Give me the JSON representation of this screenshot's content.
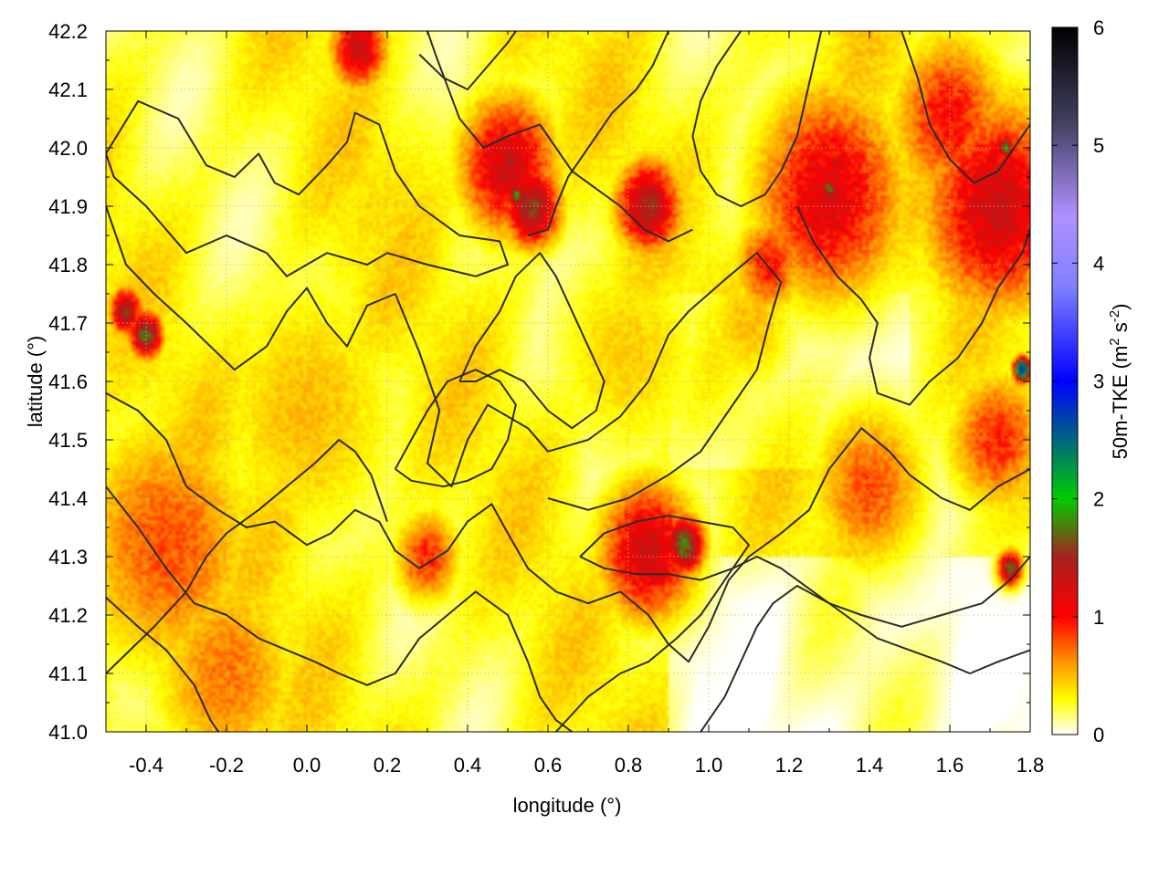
{
  "chart_data": {
    "type": "heatmap",
    "title": "",
    "xlabel": "longitude (°)",
    "ylabel": "latitude (°)",
    "xlim": [
      -0.5,
      1.8
    ],
    "ylim": [
      41.0,
      42.2
    ],
    "x_ticks": [
      "-0.4",
      "-0.2",
      "0.0",
      "0.2",
      "0.4",
      "0.6",
      "0.8",
      "1.0",
      "1.2",
      "1.4",
      "1.6",
      "1.8"
    ],
    "x_tick_values": [
      -0.4,
      -0.2,
      0.0,
      0.2,
      0.4,
      0.6,
      0.8,
      1.0,
      1.2,
      1.4,
      1.6,
      1.8
    ],
    "y_ticks": [
      "41.0",
      "41.1",
      "41.2",
      "41.3",
      "41.4",
      "41.5",
      "41.6",
      "41.7",
      "41.8",
      "41.9",
      "42.0",
      "42.1",
      "42.2"
    ],
    "y_tick_values": [
      41.0,
      41.1,
      41.2,
      41.3,
      41.4,
      41.5,
      41.6,
      41.7,
      41.8,
      41.9,
      42.0,
      42.1,
      42.2
    ],
    "grid": true,
    "colorbar": {
      "label_main": "50m-TKE (m",
      "label_sup1": "2",
      "label_mid": " s",
      "label_sup2": "-2",
      "label_end": ")",
      "range": [
        0,
        6
      ],
      "ticks": [
        "0",
        "1",
        "2",
        "3",
        "4",
        "5",
        "6"
      ],
      "tick_values": [
        0,
        1,
        2,
        3,
        4,
        5,
        6
      ],
      "colors": [
        "#ffffff",
        "#ffff00",
        "#ff9900",
        "#ff0000",
        "#a82020",
        "#00cc00",
        "#0000ff",
        "#8080ff",
        "#b090ff",
        "#404060",
        "#000000"
      ],
      "color_stops": [
        0,
        0.3,
        0.6,
        1.0,
        1.5,
        2.0,
        3.0,
        3.8,
        4.4,
        5.2,
        6.0
      ]
    },
    "hotspots": [
      {
        "lon": -0.35,
        "lat": 41.32,
        "tke": 0.8,
        "r": 0.22
      },
      {
        "lon": -0.2,
        "lat": 41.1,
        "tke": 0.7,
        "r": 0.18
      },
      {
        "lon": -0.45,
        "lat": 41.72,
        "tke": 1.6,
        "r": 0.04
      },
      {
        "lon": -0.4,
        "lat": 41.68,
        "tke": 1.8,
        "r": 0.04
      },
      {
        "lon": 0.13,
        "lat": 42.17,
        "tke": 1.3,
        "r": 0.07
      },
      {
        "lon": 0.5,
        "lat": 41.97,
        "tke": 1.3,
        "r": 0.12
      },
      {
        "lon": 0.56,
        "lat": 41.9,
        "tke": 1.6,
        "r": 0.07
      },
      {
        "lon": 0.85,
        "lat": 41.9,
        "tke": 1.5,
        "r": 0.08
      },
      {
        "lon": 1.3,
        "lat": 41.92,
        "tke": 1.2,
        "r": 0.18
      },
      {
        "lon": 1.72,
        "lat": 41.9,
        "tke": 1.3,
        "r": 0.18
      },
      {
        "lon": 1.6,
        "lat": 42.05,
        "tke": 1.0,
        "r": 0.14
      },
      {
        "lon": 0.85,
        "lat": 41.31,
        "tke": 1.3,
        "r": 0.12
      },
      {
        "lon": 0.94,
        "lat": 41.32,
        "tke": 1.8,
        "r": 0.05
      },
      {
        "lon": 1.15,
        "lat": 41.8,
        "tke": 1.0,
        "r": 0.08
      },
      {
        "lon": 0.3,
        "lat": 41.3,
        "tke": 0.9,
        "r": 0.08
      },
      {
        "lon": 1.4,
        "lat": 41.42,
        "tke": 0.8,
        "r": 0.14
      },
      {
        "lon": 1.72,
        "lat": 41.5,
        "tke": 0.9,
        "r": 0.12
      },
      {
        "lon": 0.2,
        "lat": 41.88,
        "tke": 0.4,
        "r": 0.25
      },
      {
        "lon": 0.0,
        "lat": 41.55,
        "tke": 0.5,
        "r": 0.25
      },
      {
        "lon": 0.8,
        "lat": 41.65,
        "tke": 0.45,
        "r": 0.2
      },
      {
        "lon": 1.1,
        "lat": 41.7,
        "tke": 0.5,
        "r": 0.12
      },
      {
        "lon": 1.75,
        "lat": 41.28,
        "tke": 1.7,
        "r": 0.03
      },
      {
        "lon": 1.78,
        "lat": 41.62,
        "tke": 3.0,
        "r": 0.02
      },
      {
        "lon": 0.52,
        "lat": 41.92,
        "tke": 1.9,
        "r": 0.02
      },
      {
        "lon": 1.3,
        "lat": 41.93,
        "tke": 1.9,
        "r": 0.02
      },
      {
        "lon": 1.74,
        "lat": 42.0,
        "tke": 1.9,
        "r": 0.02
      }
    ],
    "contours": [
      [
        [
          -0.5,
          41.99
        ],
        [
          -0.42,
          42.08
        ],
        [
          -0.32,
          42.05
        ],
        [
          -0.25,
          41.97
        ],
        [
          -0.18,
          41.95
        ],
        [
          -0.12,
          41.99
        ],
        [
          -0.08,
          41.94
        ],
        [
          -0.02,
          41.92
        ],
        [
          0.05,
          41.97
        ],
        [
          0.1,
          42.01
        ],
        [
          0.12,
          42.06
        ],
        [
          0.18,
          42.04
        ],
        [
          0.22,
          41.96
        ],
        [
          0.28,
          41.9
        ],
        [
          0.38,
          41.85
        ],
        [
          0.48,
          41.84
        ],
        [
          0.5,
          41.8
        ],
        [
          0.42,
          41.78
        ],
        [
          0.3,
          41.8
        ],
        [
          0.2,
          41.82
        ],
        [
          0.15,
          41.8
        ],
        [
          0.05,
          41.82
        ],
        [
          -0.05,
          41.78
        ],
        [
          -0.1,
          41.82
        ],
        [
          -0.2,
          41.85
        ],
        [
          -0.3,
          41.82
        ],
        [
          -0.35,
          41.86
        ],
        [
          -0.4,
          41.9
        ],
        [
          -0.48,
          41.95
        ],
        [
          -0.5,
          41.99
        ]
      ],
      [
        [
          -0.5,
          41.9
        ],
        [
          -0.45,
          41.8
        ],
        [
          -0.38,
          41.75
        ],
        [
          -0.3,
          41.7
        ],
        [
          -0.18,
          41.62
        ],
        [
          -0.1,
          41.66
        ],
        [
          -0.05,
          41.72
        ],
        [
          0.0,
          41.76
        ],
        [
          0.05,
          41.7
        ],
        [
          0.1,
          41.66
        ],
        [
          0.15,
          41.73
        ],
        [
          0.22,
          41.75
        ],
        [
          0.28,
          41.65
        ],
        [
          0.33,
          41.55
        ],
        [
          0.3,
          41.46
        ],
        [
          0.36,
          41.42
        ],
        [
          0.4,
          41.5
        ],
        [
          0.45,
          41.56
        ],
        [
          0.55,
          41.52
        ],
        [
          0.6,
          41.48
        ],
        [
          0.7,
          41.5
        ],
        [
          0.78,
          41.54
        ],
        [
          0.85,
          41.6
        ],
        [
          0.9,
          41.68
        ],
        [
          0.95,
          41.72
        ],
        [
          1.05,
          41.78
        ],
        [
          1.12,
          41.82
        ],
        [
          1.18,
          41.77
        ],
        [
          1.15,
          41.7
        ],
        [
          1.12,
          41.62
        ],
        [
          1.05,
          41.55
        ],
        [
          0.98,
          41.48
        ],
        [
          0.9,
          41.44
        ],
        [
          0.8,
          41.4
        ],
        [
          0.7,
          41.38
        ],
        [
          0.6,
          41.4
        ]
      ],
      [
        [
          -0.5,
          41.58
        ],
        [
          -0.42,
          41.55
        ],
        [
          -0.35,
          41.5
        ],
        [
          -0.3,
          41.42
        ],
        [
          -0.22,
          41.38
        ],
        [
          -0.15,
          41.35
        ],
        [
          -0.08,
          41.36
        ],
        [
          0.0,
          41.32
        ],
        [
          0.06,
          41.34
        ],
        [
          0.12,
          41.38
        ],
        [
          0.18,
          41.36
        ],
        [
          0.22,
          41.31
        ],
        [
          0.28,
          41.28
        ],
        [
          0.35,
          41.31
        ],
        [
          0.4,
          41.36
        ],
        [
          0.46,
          41.39
        ],
        [
          0.5,
          41.34
        ],
        [
          0.55,
          41.28
        ],
        [
          0.62,
          41.24
        ],
        [
          0.7,
          41.22
        ],
        [
          0.78,
          41.24
        ],
        [
          0.85,
          41.2
        ],
        [
          0.9,
          41.15
        ],
        [
          0.95,
          41.12
        ],
        [
          1.0,
          41.18
        ],
        [
          1.05,
          41.26
        ],
        [
          1.1,
          41.3
        ],
        [
          1.18,
          41.34
        ],
        [
          1.25,
          41.38
        ],
        [
          1.3,
          41.45
        ],
        [
          1.38,
          41.52
        ],
        [
          1.45,
          41.48
        ],
        [
          1.5,
          41.44
        ],
        [
          1.58,
          41.4
        ],
        [
          1.65,
          41.38
        ],
        [
          1.72,
          41.42
        ],
        [
          1.8,
          41.45
        ]
      ],
      [
        [
          -0.5,
          41.42
        ],
        [
          -0.42,
          41.35
        ],
        [
          -0.35,
          41.28
        ],
        [
          -0.28,
          41.22
        ],
        [
          -0.2,
          41.2
        ],
        [
          -0.12,
          41.16
        ],
        [
          -0.05,
          41.14
        ],
        [
          0.02,
          41.12
        ],
        [
          0.08,
          41.1
        ],
        [
          0.15,
          41.08
        ],
        [
          0.22,
          41.1
        ],
        [
          0.28,
          41.16
        ],
        [
          0.35,
          41.2
        ],
        [
          0.42,
          41.24
        ],
        [
          0.5,
          41.2
        ],
        [
          0.55,
          41.12
        ],
        [
          0.58,
          41.06
        ],
        [
          0.62,
          41.02
        ],
        [
          0.66,
          41.0
        ]
      ],
      [
        [
          -0.5,
          41.23
        ],
        [
          -0.42,
          41.18
        ],
        [
          -0.35,
          41.14
        ],
        [
          -0.28,
          41.08
        ],
        [
          -0.24,
          41.02
        ],
        [
          -0.22,
          41.0
        ]
      ],
      [
        [
          0.62,
          41.0
        ],
        [
          0.7,
          41.06
        ],
        [
          0.78,
          41.1
        ],
        [
          0.85,
          41.12
        ],
        [
          0.92,
          41.16
        ],
        [
          0.98,
          41.2
        ],
        [
          1.02,
          41.24
        ],
        [
          1.06,
          41.28
        ],
        [
          1.12,
          41.3
        ],
        [
          1.18,
          41.28
        ],
        [
          1.26,
          41.24
        ],
        [
          1.34,
          41.2
        ],
        [
          1.42,
          41.16
        ],
        [
          1.5,
          41.14
        ],
        [
          1.58,
          41.12
        ],
        [
          1.65,
          41.1
        ],
        [
          1.72,
          41.12
        ],
        [
          1.8,
          41.14
        ]
      ],
      [
        [
          0.98,
          41.0
        ],
        [
          1.04,
          41.06
        ],
        [
          1.08,
          41.12
        ],
        [
          1.12,
          41.18
        ],
        [
          1.16,
          41.22
        ],
        [
          1.22,
          41.25
        ],
        [
          1.3,
          41.22
        ],
        [
          1.38,
          41.2
        ],
        [
          1.48,
          41.18
        ],
        [
          1.58,
          41.2
        ],
        [
          1.68,
          41.22
        ],
        [
          1.75,
          41.26
        ],
        [
          1.8,
          41.3
        ]
      ],
      [
        [
          0.68,
          41.3
        ],
        [
          0.74,
          41.34
        ],
        [
          0.82,
          41.36
        ],
        [
          0.9,
          41.37
        ],
        [
          0.98,
          41.36
        ],
        [
          1.06,
          41.35
        ],
        [
          1.1,
          41.32
        ],
        [
          1.06,
          41.28
        ],
        [
          0.98,
          41.26
        ],
        [
          0.9,
          41.27
        ],
        [
          0.82,
          41.27
        ],
        [
          0.74,
          41.28
        ],
        [
          0.68,
          41.3
        ]
      ],
      [
        [
          0.9,
          42.2
        ],
        [
          0.86,
          42.14
        ],
        [
          0.82,
          42.1
        ],
        [
          0.76,
          42.06
        ],
        [
          0.7,
          42.0
        ],
        [
          0.65,
          41.95
        ],
        [
          0.62,
          41.9
        ],
        [
          0.6,
          41.86
        ],
        [
          0.55,
          41.85
        ]
      ],
      [
        [
          1.08,
          42.2
        ],
        [
          1.02,
          42.14
        ],
        [
          0.98,
          42.08
        ],
        [
          0.96,
          42.02
        ],
        [
          0.98,
          41.96
        ],
        [
          1.02,
          41.92
        ],
        [
          1.08,
          41.9
        ],
        [
          1.14,
          41.92
        ],
        [
          1.18,
          41.96
        ],
        [
          1.22,
          42.02
        ],
        [
          1.24,
          42.08
        ],
        [
          1.26,
          42.14
        ],
        [
          1.28,
          42.2
        ]
      ],
      [
        [
          1.22,
          41.9
        ],
        [
          1.26,
          41.84
        ],
        [
          1.32,
          41.78
        ],
        [
          1.38,
          41.74
        ],
        [
          1.42,
          41.7
        ],
        [
          1.4,
          41.64
        ],
        [
          1.42,
          41.58
        ],
        [
          1.5,
          41.56
        ],
        [
          1.55,
          41.6
        ],
        [
          1.62,
          41.64
        ],
        [
          1.68,
          41.7
        ],
        [
          1.72,
          41.76
        ],
        [
          1.78,
          41.82
        ],
        [
          1.8,
          41.86
        ]
      ],
      [
        [
          1.48,
          42.2
        ],
        [
          1.52,
          42.12
        ],
        [
          1.55,
          42.04
        ],
        [
          1.6,
          41.98
        ],
        [
          1.66,
          41.94
        ],
        [
          1.72,
          41.96
        ],
        [
          1.76,
          42.0
        ],
        [
          1.8,
          42.04
        ]
      ],
      [
        [
          0.28,
          42.16
        ],
        [
          0.34,
          42.12
        ],
        [
          0.4,
          42.1
        ],
        [
          0.45,
          42.14
        ],
        [
          0.5,
          42.18
        ],
        [
          0.52,
          42.2
        ]
      ],
      [
        [
          0.3,
          42.2
        ],
        [
          0.32,
          42.16
        ],
        [
          0.38,
          42.05
        ],
        [
          0.44,
          42.0
        ],
        [
          0.5,
          42.02
        ],
        [
          0.58,
          42.04
        ],
        [
          0.62,
          42.0
        ],
        [
          0.66,
          41.96
        ],
        [
          0.72,
          41.93
        ],
        [
          0.78,
          41.9
        ],
        [
          0.84,
          41.86
        ],
        [
          0.9,
          41.84
        ],
        [
          0.96,
          41.86
        ]
      ],
      [
        [
          0.22,
          41.45
        ],
        [
          0.26,
          41.5
        ],
        [
          0.3,
          41.55
        ],
        [
          0.35,
          41.6
        ],
        [
          0.42,
          41.62
        ],
        [
          0.48,
          41.6
        ],
        [
          0.52,
          41.56
        ],
        [
          0.5,
          41.5
        ],
        [
          0.46,
          41.45
        ],
        [
          0.4,
          41.43
        ],
        [
          0.34,
          41.42
        ],
        [
          0.26,
          41.43
        ],
        [
          0.22,
          41.45
        ]
      ],
      [
        [
          -0.5,
          41.1
        ],
        [
          -0.44,
          41.14
        ],
        [
          -0.38,
          41.18
        ],
        [
          -0.3,
          41.24
        ],
        [
          -0.25,
          41.3
        ],
        [
          -0.2,
          41.34
        ],
        [
          -0.12,
          41.38
        ],
        [
          -0.05,
          41.42
        ],
        [
          0.02,
          41.46
        ],
        [
          0.08,
          41.5
        ],
        [
          0.12,
          41.48
        ],
        [
          0.16,
          41.44
        ],
        [
          0.18,
          41.4
        ],
        [
          0.2,
          41.36
        ]
      ],
      [
        [
          0.38,
          41.6
        ],
        [
          0.42,
          41.66
        ],
        [
          0.48,
          41.72
        ],
        [
          0.52,
          41.78
        ],
        [
          0.58,
          41.82
        ],
        [
          0.62,
          41.78
        ],
        [
          0.66,
          41.72
        ],
        [
          0.7,
          41.66
        ],
        [
          0.74,
          41.6
        ],
        [
          0.72,
          41.55
        ],
        [
          0.66,
          41.52
        ],
        [
          0.6,
          41.55
        ],
        [
          0.54,
          41.6
        ],
        [
          0.48,
          41.62
        ],
        [
          0.42,
          41.6
        ],
        [
          0.38,
          41.6
        ]
      ]
    ]
  }
}
